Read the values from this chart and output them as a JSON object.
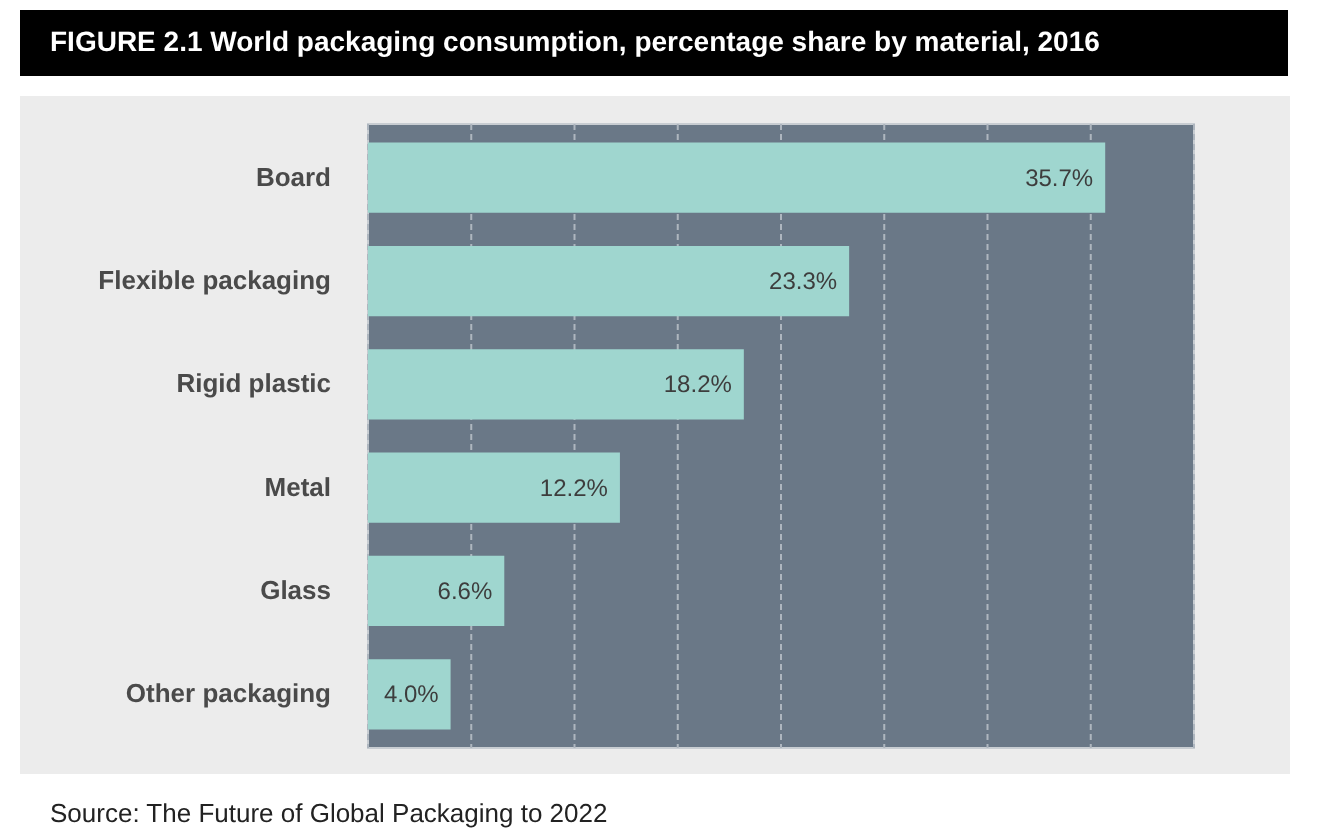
{
  "chart_data": {
    "type": "bar",
    "orientation": "horizontal",
    "title": "FIGURE 2.1 World packaging consumption, percentage share by material, 2016",
    "categories": [
      "Board",
      "Flexible packaging",
      "Rigid plastic",
      "Metal",
      "Glass",
      "Other packaging"
    ],
    "values": [
      35.7,
      23.3,
      18.2,
      12.2,
      6.6,
      4.0
    ],
    "value_labels": [
      "35.7%",
      "23.3%",
      "18.2%",
      "12.2%",
      "6.6%",
      "4.0%"
    ],
    "color": "#9fd6cf",
    "xlim": [
      0,
      40
    ],
    "xticks": [
      {
        "value": 0,
        "label": null
      },
      {
        "value": 5,
        "label": null
      },
      {
        "value": 10,
        "label": null
      },
      {
        "value": 15,
        "label": null
      },
      {
        "value": 20,
        "label": null
      },
      {
        "value": 25,
        "label": null
      },
      {
        "value": 30,
        "label": null
      },
      {
        "value": 35,
        "label": null
      },
      {
        "value": 40,
        "label": null
      }
    ],
    "grid": "x",
    "tick_labels": "y",
    "annotations": [
      "Source: The Future of Global Packaging to 2022"
    ]
  }
}
